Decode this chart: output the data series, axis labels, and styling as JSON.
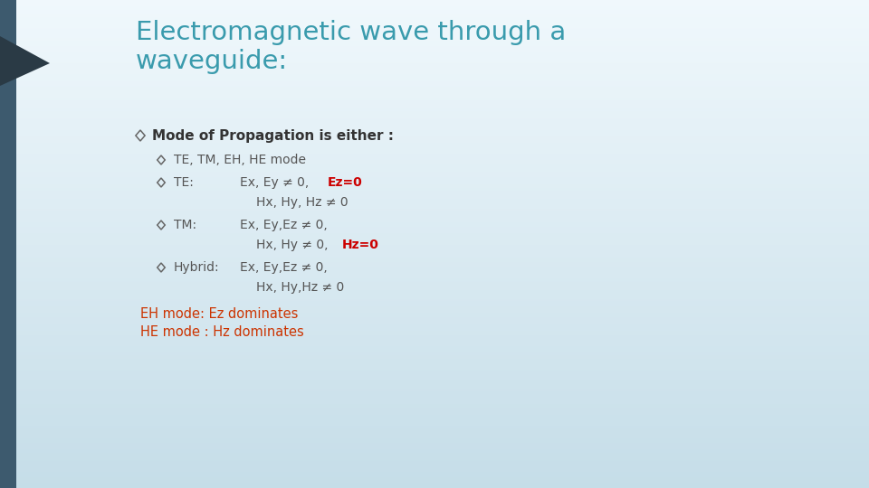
{
  "title_line1": "Electromagnetic wave through a",
  "title_line2": "waveguide:",
  "title_color": "#3A9BAD",
  "background_top": "#f0f8fc",
  "background_bottom": "#c5dde8",
  "bullet_color": "#666666",
  "red_color": "#cc0000",
  "gray_text_color": "#555555",
  "footer_color": "#cc3300",
  "footer1": "EH mode: Ez dominates",
  "footer2": "HE mode : Hz dominates",
  "sidebar_color": "#3d5a6e",
  "arrow_color": "#2a3a45",
  "curve_color": "#2a4a6b"
}
